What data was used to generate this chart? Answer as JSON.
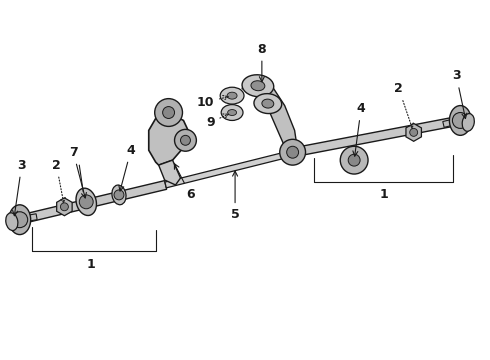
{
  "bg_color": "#ffffff",
  "line_color": "#1a1a1a",
  "figsize": [
    4.9,
    3.6
  ],
  "dpi": 100,
  "rod_color": "#c8c8c8",
  "rod_edge": "#1a1a1a",
  "joint_color": "#b0b0b0",
  "label_fs": 9
}
